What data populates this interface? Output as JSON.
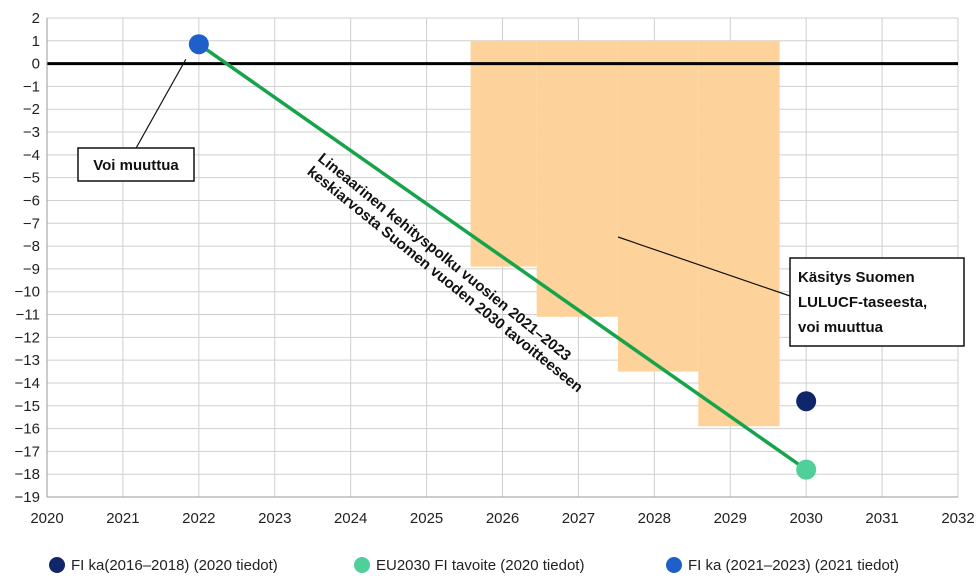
{
  "chart_data": {
    "type": "line",
    "title": "",
    "xlabel": "",
    "ylabel": "",
    "xlim": [
      2020,
      2032
    ],
    "ylim": [
      -19,
      2
    ],
    "x_ticks": [
      "2020",
      "2021",
      "2022",
      "2023",
      "2024",
      "2025",
      "2026",
      "2027",
      "2028",
      "2029",
      "2030",
      "2031",
      "2032"
    ],
    "y_ticks": [
      "2",
      "1",
      "0",
      "−1",
      "−2",
      "−3",
      "−4",
      "−5",
      "−6",
      "−7",
      "−8",
      "−9",
      "−10",
      "−11",
      "−12",
      "−13",
      "−14",
      "−15",
      "−16",
      "−17",
      "−18",
      "−19"
    ],
    "grid": true,
    "zero_line": true,
    "range_band": {
      "color": "#fdd39b",
      "steps": [
        {
          "x_start": 2025.58,
          "x_end": 2026.45,
          "y_top": 1,
          "y_bottom": -8.9
        },
        {
          "x_start": 2026.45,
          "x_end": 2027.52,
          "y_top": 1,
          "y_bottom": -11.1
        },
        {
          "x_start": 2027.52,
          "x_end": 2028.58,
          "y_top": 1,
          "y_bottom": -13.5
        },
        {
          "x_start": 2028.58,
          "x_end": 2029.65,
          "y_top": 1,
          "y_bottom": -15.9
        }
      ]
    },
    "trajectory": {
      "color": "#16a34a",
      "x": [
        2022,
        2030
      ],
      "y": [
        0.85,
        -17.8
      ]
    },
    "series": [
      {
        "name": "FI ka(2016–2018) (2020 tiedot)",
        "color": "#10266b",
        "x": [
          2030
        ],
        "y": [
          -14.8
        ]
      },
      {
        "name": "EU2030 FI tavoite (2020 tiedot)",
        "color": "#4fcf9a",
        "x": [
          2030
        ],
        "y": [
          -17.8
        ]
      },
      {
        "name": "FI ka (2021–2023) (2021 tiedot)",
        "color": "#1f5fc9",
        "x": [
          2022
        ],
        "y": [
          0.85
        ]
      }
    ],
    "annotations": {
      "voi_muuttua": "Voi muuttua",
      "trajectory_line1": "Lineaarinen kehityspolku vuosien 2021–2023",
      "trajectory_line2": "keskiarvosta Suomen vuoden 2030 tavoitteeseen",
      "band_line1": "Käsitys Suomen",
      "band_line2": "LULUCF-taseesta,",
      "band_line3": "voi muuttua"
    }
  }
}
